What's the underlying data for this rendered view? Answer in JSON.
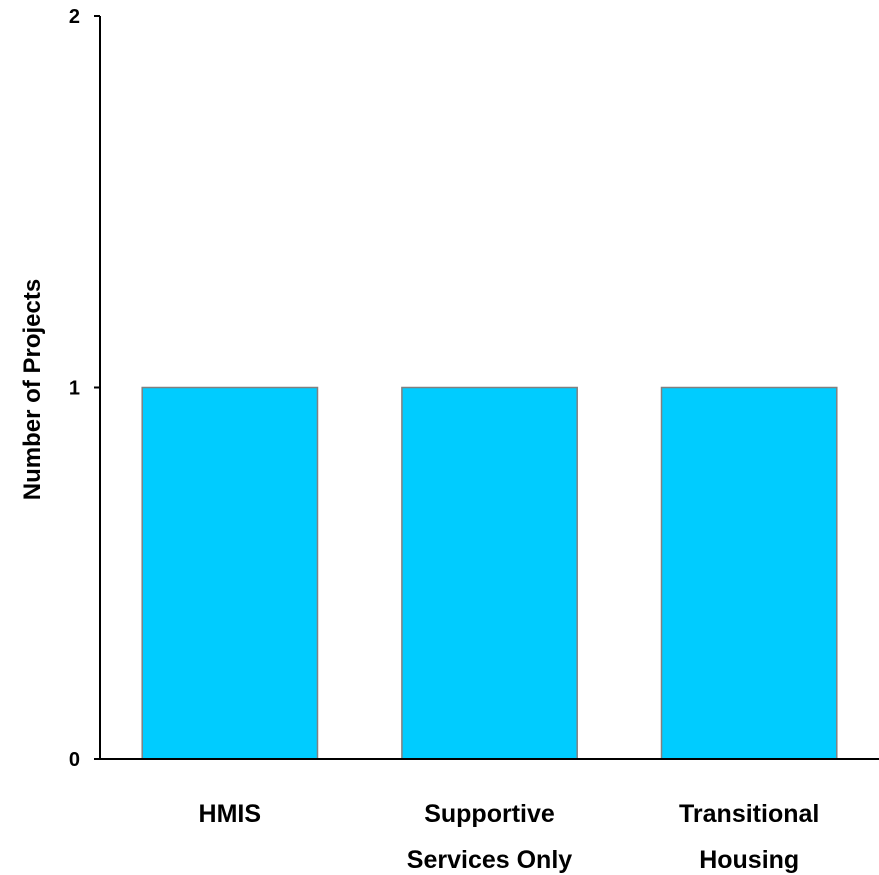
{
  "chart_data": {
    "type": "bar",
    "title": "",
    "xlabel": "",
    "ylabel": "Number of Projects",
    "categories": [
      [
        "HMIS"
      ],
      [
        "Supportive",
        "Services Only"
      ],
      [
        "Transitional",
        "Housing"
      ]
    ],
    "values": [
      1,
      1,
      1
    ],
    "ylim": [
      0,
      2
    ],
    "yticks": [
      0,
      1,
      2
    ],
    "grid": false,
    "legend": "none",
    "colors": {
      "bar_fill": "#00CCFF",
      "bar_stroke": "#808080",
      "axis": "#000000",
      "text": "#000000"
    }
  }
}
